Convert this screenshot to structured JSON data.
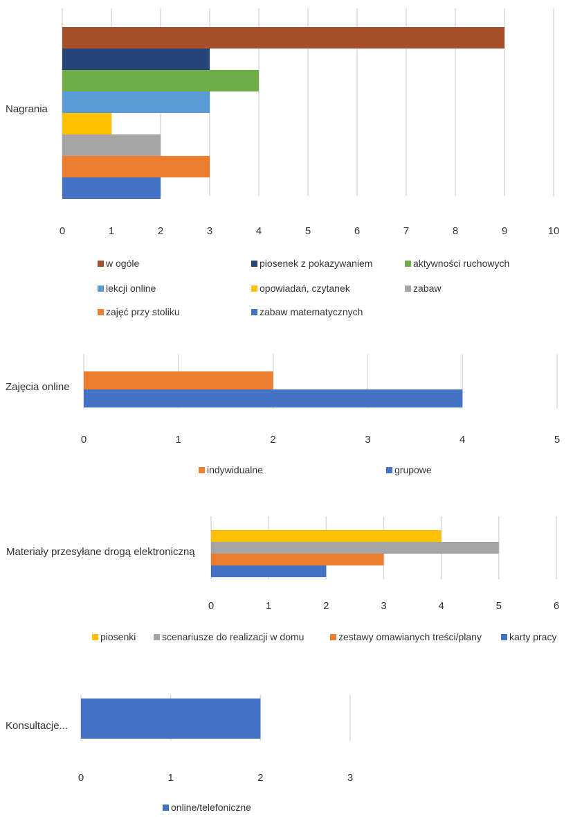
{
  "chart_data": [
    {
      "type": "bar",
      "orientation": "horizontal",
      "categories": [
        "Nagrania"
      ],
      "xlim": [
        0,
        10
      ],
      "ticks": [
        "0",
        "1",
        "2",
        "3",
        "4",
        "5",
        "6",
        "7",
        "8",
        "9",
        "10"
      ],
      "grid": true,
      "legend_position": "bottom",
      "series": [
        {
          "name": "w ogóle",
          "values": [
            9
          ],
          "color": "#A5502B"
        },
        {
          "name": "piosenek z pokazywaniem",
          "values": [
            3
          ],
          "color": "#264478"
        },
        {
          "name": "aktywności ruchowych",
          "values": [
            4
          ],
          "color": "#70AD47"
        },
        {
          "name": "lekcji online",
          "values": [
            3
          ],
          "color": "#5B9BD5"
        },
        {
          "name": "opowiadań, czytanek",
          "values": [
            1
          ],
          "color": "#FFC000"
        },
        {
          "name": "zabaw",
          "values": [
            2
          ],
          "color": "#A5A5A5"
        },
        {
          "name": "zajęć przy stoliku",
          "values": [
            3
          ],
          "color": "#ED7D31"
        },
        {
          "name": "zabaw matematycznych",
          "values": [
            2
          ],
          "color": "#4472C4"
        }
      ]
    },
    {
      "type": "bar",
      "orientation": "horizontal",
      "categories": [
        "Zajęcia online"
      ],
      "xlim": [
        0,
        5
      ],
      "ticks": [
        "0",
        "1",
        "2",
        "3",
        "4",
        "5"
      ],
      "grid": true,
      "legend_position": "bottom",
      "series": [
        {
          "name": "indywidualne",
          "values": [
            2
          ],
          "color": "#ED7D31"
        },
        {
          "name": "grupowe",
          "values": [
            4
          ],
          "color": "#4472C4"
        }
      ]
    },
    {
      "type": "bar",
      "orientation": "horizontal",
      "categories": [
        "Materiały przesyłane drogą elektroniczną"
      ],
      "xlim": [
        0,
        6
      ],
      "ticks": [
        "0",
        "1",
        "2",
        "3",
        "4",
        "5",
        "6"
      ],
      "grid": true,
      "legend_position": "bottom",
      "series": [
        {
          "name": "piosenki",
          "values": [
            4
          ],
          "color": "#FFC000"
        },
        {
          "name": "scenariusze do realizacji w domu",
          "values": [
            5
          ],
          "color": "#A5A5A5"
        },
        {
          "name": "zestawy omawianych treści/plany",
          "values": [
            3
          ],
          "color": "#ED7D31"
        },
        {
          "name": "karty pracy",
          "values": [
            2
          ],
          "color": "#4472C4"
        }
      ]
    },
    {
      "type": "bar",
      "orientation": "horizontal",
      "categories": [
        "Konsultacje..."
      ],
      "xlim": [
        0,
        3
      ],
      "ticks": [
        "0",
        "1",
        "2",
        "3"
      ],
      "grid": true,
      "legend_position": "bottom",
      "series": [
        {
          "name": "online/telefoniczne",
          "values": [
            2
          ],
          "color": "#4472C4"
        }
      ]
    }
  ]
}
